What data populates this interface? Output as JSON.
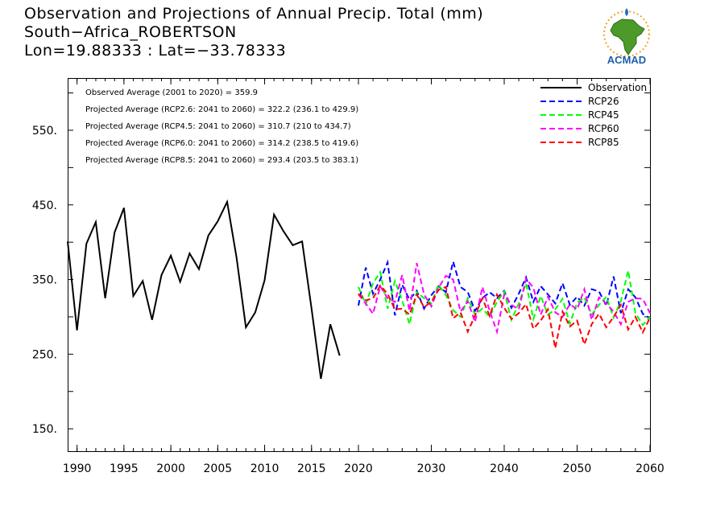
{
  "header": {
    "title": "Observation and Projections of Annual Precip. Total (mm)",
    "location": "South−Africa_ROBERTSON",
    "coords": "Lon=19.88333 : Lat=−33.78333"
  },
  "logo": {
    "text": "ACMAD",
    "icon": "africa-map-sun-logo"
  },
  "chart_data": {
    "type": "line",
    "xlim": [
      1989,
      2060
    ],
    "ylim": [
      120,
      620
    ],
    "x_ticks": [
      1990,
      1995,
      2000,
      2005,
      2010,
      2015,
      2020,
      2030,
      2040,
      2050,
      2060
    ],
    "x_tick_labels": [
      "1990",
      "1995",
      "2000",
      "2005",
      "2010",
      "2015",
      "2020",
      "2030",
      "2040",
      "2050",
      "2060"
    ],
    "y_ticks": [
      150,
      250,
      350,
      450,
      550
    ],
    "y_tick_labels": [
      "150.",
      "250.",
      "350.",
      "450.",
      "550."
    ],
    "grid": false,
    "legend_position": "top-right",
    "annotations": [
      "Observed Average (2001 to 2020) = 359.9",
      "Projected Average (RCP2.6: 2041 to 2060) = 322.2 (236.1 to 429.9)",
      "Projected Average (RCP4.5: 2041 to 2060) = 310.7 (210 to 434.7)",
      "Projected Average (RCP6.0: 2041 to 2060) = 314.2 (238.5 to 419.6)",
      "Projected Average (RCP8.5: 2041 to 2060) = 293.4 (203.5 to 383.1)"
    ],
    "series": [
      {
        "name": "Observation",
        "color": "#000000",
        "dash": "solid",
        "x": [
          1989,
          1990,
          1991,
          1992,
          1993,
          1994,
          1995,
          1996,
          1997,
          1998,
          1999,
          2000,
          2001,
          2002,
          2003,
          2004,
          2005,
          2006,
          2007,
          2008,
          2009,
          2010,
          2011,
          2012,
          2013,
          2014,
          2015,
          2016,
          2017,
          2018,
          2019,
          2020
        ],
        "values": [
          401,
          282,
          398,
          427,
          325,
          413,
          446,
          328,
          348,
          296,
          356,
          382,
          347,
          385,
          364,
          409,
          428,
          454,
          380,
          286,
          306,
          349,
          437,
          415,
          396,
          401,
          311,
          217,
          290,
          248,
          null,
          null
        ]
      },
      {
        "name": "RCP26",
        "color": "#0000ff",
        "dash": "dashed",
        "x": [
          2020,
          2021,
          2022,
          2023,
          2024,
          2025,
          2026,
          2027,
          2028,
          2029,
          2030,
          2031,
          2032,
          2033,
          2034,
          2035,
          2036,
          2037,
          2038,
          2039,
          2040,
          2041,
          2042,
          2043,
          2044,
          2045,
          2046,
          2047,
          2048,
          2049,
          2050,
          2051,
          2052,
          2053,
          2054,
          2055,
          2056,
          2057,
          2058,
          2059,
          2060
        ],
        "values": [
          315,
          366,
          331,
          350,
          373,
          302,
          343,
          323,
          335,
          311,
          329,
          341,
          333,
          374,
          340,
          333,
          308,
          325,
          333,
          325,
          335,
          312,
          331,
          353,
          320,
          341,
          330,
          318,
          345,
          316,
          327,
          315,
          337,
          334,
          315,
          354,
          305,
          337,
          326,
          304,
          298
        ]
      },
      {
        "name": "RCP45",
        "color": "#00ff00",
        "dash": "dashed",
        "x": [
          2020,
          2021,
          2022,
          2023,
          2024,
          2025,
          2026,
          2027,
          2028,
          2029,
          2030,
          2031,
          2032,
          2033,
          2034,
          2035,
          2036,
          2037,
          2038,
          2039,
          2040,
          2041,
          2042,
          2043,
          2044,
          2045,
          2046,
          2047,
          2048,
          2049,
          2050,
          2051,
          2052,
          2053,
          2054,
          2055,
          2056,
          2057,
          2058,
          2059,
          2060
        ],
        "values": [
          340,
          317,
          345,
          360,
          311,
          348,
          322,
          290,
          333,
          325,
          318,
          343,
          329,
          309,
          300,
          325,
          303,
          311,
          300,
          320,
          334,
          296,
          318,
          345,
          297,
          328,
          303,
          310,
          324,
          291,
          319,
          326,
          303,
          316,
          327,
          299,
          321,
          362,
          305,
          289,
          300
        ]
      },
      {
        "name": "RCP60",
        "color": "#ff00ff",
        "dash": "dashed",
        "x": [
          2020,
          2021,
          2022,
          2023,
          2024,
          2025,
          2026,
          2027,
          2028,
          2029,
          2030,
          2031,
          2032,
          2033,
          2034,
          2035,
          2036,
          2037,
          2038,
          2039,
          2040,
          2041,
          2042,
          2043,
          2044,
          2045,
          2046,
          2047,
          2048,
          2049,
          2050,
          2051,
          2052,
          2053,
          2054,
          2055,
          2056,
          2057,
          2058,
          2059,
          2060
        ],
        "values": [
          330,
          318,
          304,
          341,
          325,
          320,
          356,
          308,
          372,
          330,
          314,
          339,
          355,
          350,
          307,
          321,
          293,
          340,
          308,
          280,
          330,
          316,
          310,
          351,
          339,
          303,
          327,
          306,
          300,
          317,
          310,
          337,
          296,
          326,
          318,
          307,
          290,
          320,
          325,
          324,
          305
        ]
      },
      {
        "name": "RCP85",
        "color": "#ff0000",
        "dash": "dashed",
        "x": [
          2020,
          2021,
          2022,
          2023,
          2024,
          2025,
          2026,
          2027,
          2028,
          2029,
          2030,
          2031,
          2032,
          2033,
          2034,
          2035,
          2036,
          2037,
          2038,
          2039,
          2040,
          2041,
          2042,
          2043,
          2044,
          2045,
          2046,
          2047,
          2048,
          2049,
          2050,
          2051,
          2052,
          2053,
          2054,
          2055,
          2056,
          2057,
          2058,
          2059,
          2060
        ],
        "values": [
          331,
          322,
          325,
          342,
          331,
          310,
          311,
          303,
          330,
          313,
          320,
          336,
          340,
          298,
          306,
          280,
          302,
          325,
          301,
          330,
          312,
          297,
          305,
          317,
          284,
          295,
          310,
          258,
          307,
          287,
          295,
          263,
          290,
          304,
          286,
          300,
          316,
          283,
          300,
          279,
          299
        ]
      }
    ]
  }
}
